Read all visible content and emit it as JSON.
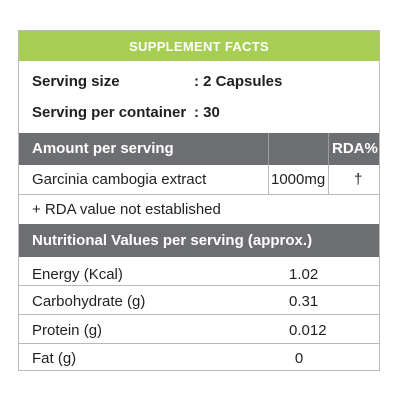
{
  "header": {
    "title": "SUPPLEMENT FACTS"
  },
  "serving": {
    "size_label": "Serving size",
    "size_value": ": 2 Capsules",
    "per_container_label": "Serving per container",
    "per_container_value": ": 30"
  },
  "amount_bar": {
    "label": "Amount per serving",
    "rda_label": "RDA%"
  },
  "ingredient": {
    "name": "Garcinia cambogia extract",
    "amount": "1000mg",
    "rda": "†"
  },
  "footnote": "+ RDA value not established",
  "nutrition_bar": {
    "label": "Nutritional Values per serving (approx.)"
  },
  "nutrition": [
    {
      "name": "Energy (Kcal)",
      "value": "1.02"
    },
    {
      "name": "Carbohydrate (g)",
      "value": "0.31"
    },
    {
      "name": "Protein (g)",
      "value": "0.012"
    },
    {
      "name": "Fat (g)",
      "value": "0"
    }
  ],
  "colors": {
    "header_green": "#a6cd54",
    "bar_gray": "#6d6e71",
    "border": "#b9b9b9"
  }
}
